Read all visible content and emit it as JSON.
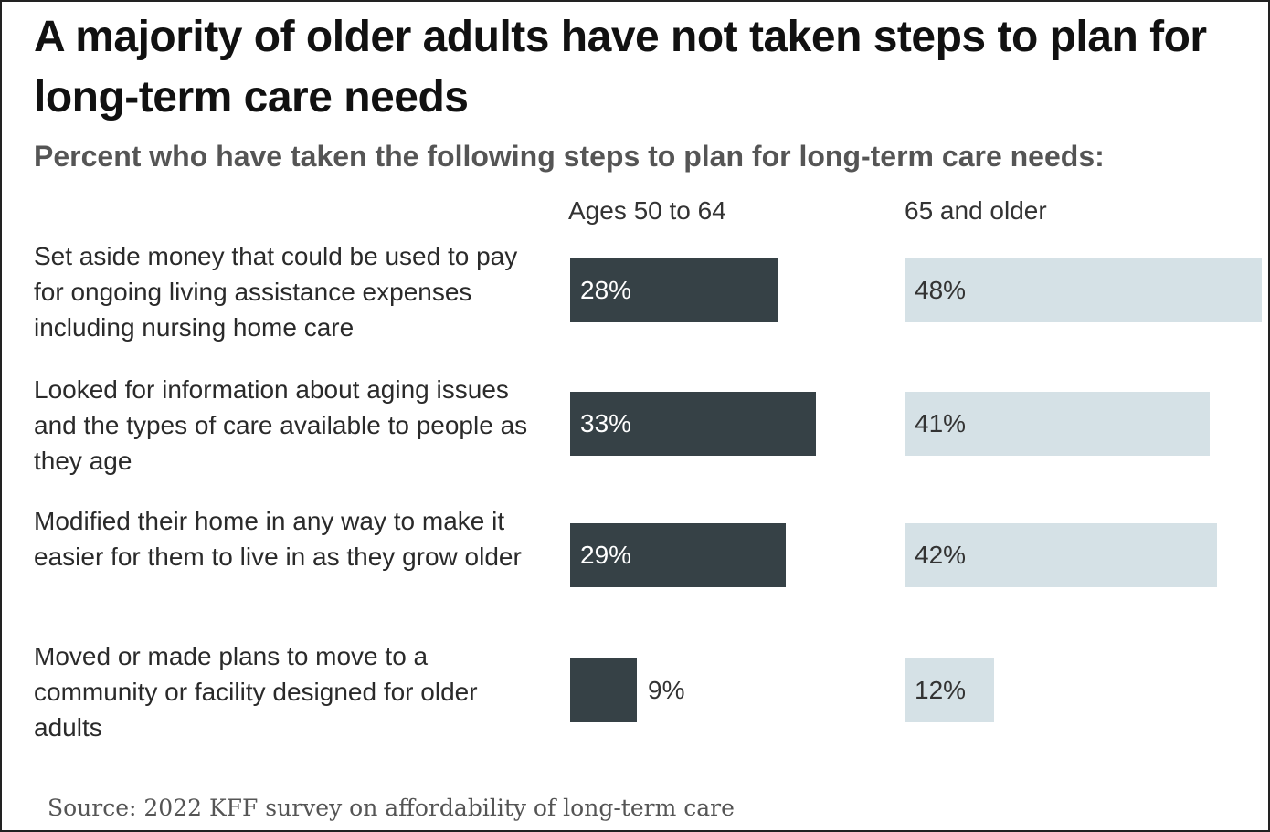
{
  "chart_data": {
    "type": "bar",
    "title": "A majority of older adults have not taken steps to plan for long-term care needs",
    "subtitle": "Percent who have taken the following steps to plan for long-term care needs:",
    "categories": [
      "Set aside money that could be used to pay for ongoing living assistance expenses including nursing home care",
      "Looked for information about aging issues and the types of care available to people as they age",
      "Modified their home in any way to make it easier for them to live in as they grow older",
      "Moved or made plans to move to a community or facility designed for older adults"
    ],
    "series": [
      {
        "name": "Ages 50 to 64",
        "values": [
          28,
          33,
          29,
          9
        ],
        "labels": [
          "28%",
          "33%",
          "29%",
          "9%"
        ],
        "color": "#364146"
      },
      {
        "name": "65 and older",
        "values": [
          48,
          41,
          42,
          12
        ],
        "labels": [
          "48%",
          "41%",
          "42%",
          "12%"
        ],
        "color": "#d5e1e6"
      }
    ],
    "unit": "%",
    "xlim": [
      0,
      48
    ],
    "source": "Source: 2022 KFF survey on affordability of long-term care"
  }
}
